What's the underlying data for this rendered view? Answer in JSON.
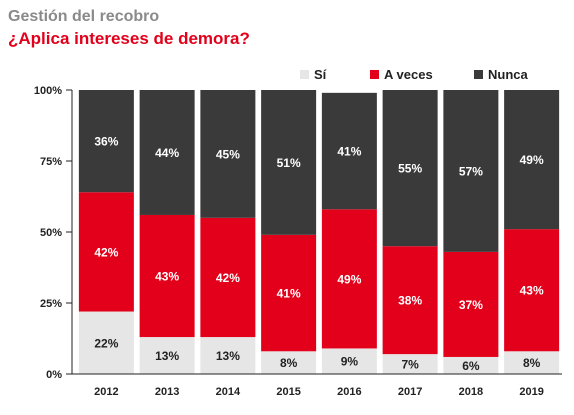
{
  "header": {
    "subtitle": "Gestión del recobro",
    "title": "¿Aplica intereses de demora?"
  },
  "chart_data": {
    "type": "bar",
    "stacked": true,
    "categories": [
      "2012",
      "2013",
      "2014",
      "2015",
      "2016",
      "2017",
      "2018",
      "2019"
    ],
    "series": [
      {
        "name": "Sí",
        "color": "#e6e6e6",
        "values": [
          22,
          13,
          13,
          8,
          9,
          7,
          6,
          8
        ]
      },
      {
        "name": "A veces",
        "color": "#e2001a",
        "values": [
          42,
          43,
          42,
          41,
          49,
          38,
          37,
          43
        ]
      },
      {
        "name": "Nunca",
        "color": "#3a3a3a",
        "values": [
          36,
          44,
          45,
          51,
          41,
          55,
          57,
          49
        ]
      }
    ],
    "y_ticks": [
      "0%",
      "25%",
      "50%",
      "75%",
      "100%"
    ],
    "ylim": [
      0,
      100
    ],
    "legend_position": "top-right",
    "grid": false,
    "value_label_suffix": "%"
  }
}
